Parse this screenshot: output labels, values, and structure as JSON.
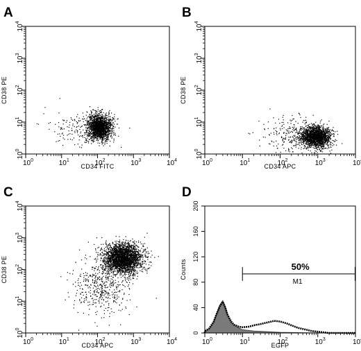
{
  "chart_data": [
    {
      "panel": "A",
      "type": "scatter",
      "xlabel": "CD34 FITC",
      "ylabel": "CD38 PE",
      "xscale": "log",
      "yscale": "log",
      "xlim": [
        1,
        10000
      ],
      "ylim": [
        1,
        10000
      ],
      "xticks": [
        "1",
        "10",
        "100",
        "1000",
        "10000"
      ],
      "yticks": [
        "1",
        "10",
        "100",
        "1000",
        "10000"
      ],
      "clusters": [
        {
          "center": [
            110,
            7
          ],
          "spread_decades": [
            0.17,
            0.2
          ],
          "weight": 1800
        },
        {
          "center": [
            30,
            6
          ],
          "spread_decades": [
            0.45,
            0.28
          ],
          "weight": 160
        }
      ]
    },
    {
      "panel": "B",
      "type": "scatter",
      "xlabel": "CD34 APC",
      "ylabel": "CD38 PE",
      "xscale": "log",
      "yscale": "log",
      "xlim": [
        1,
        10000
      ],
      "ylim": [
        1,
        10000
      ],
      "xticks": [
        "1",
        "10",
        "100",
        "1000",
        "10000"
      ],
      "yticks": [
        "1",
        "10",
        "100",
        "1000",
        "10000"
      ],
      "clusters": [
        {
          "center": [
            900,
            3.5
          ],
          "spread_decades": [
            0.2,
            0.16
          ],
          "weight": 1700
        },
        {
          "center": [
            250,
            4
          ],
          "spread_decades": [
            0.45,
            0.28
          ],
          "weight": 300
        }
      ]
    },
    {
      "panel": "C",
      "type": "scatter",
      "xlabel": "CD34 APC",
      "ylabel": "CD38 PE",
      "xscale": "log",
      "yscale": "log",
      "xlim": [
        1,
        10000
      ],
      "ylim": [
        1,
        10000
      ],
      "xticks": [
        "1",
        "10",
        "100",
        "1000",
        "10000"
      ],
      "yticks": [
        "1",
        "10",
        "100",
        "1000",
        "10000"
      ],
      "clusters": [
        {
          "center": [
            500,
            230
          ],
          "spread_decades": [
            0.26,
            0.24
          ],
          "weight": 2700
        },
        {
          "center": [
            130,
            30
          ],
          "spread_decades": [
            0.42,
            0.42
          ],
          "weight": 450
        }
      ]
    },
    {
      "panel": "D",
      "type": "area",
      "xlabel": "EGFP",
      "ylabel": "Counts",
      "xscale": "log",
      "xlim": [
        1,
        10000
      ],
      "ylim": [
        0,
        200
      ],
      "xticks": [
        "1",
        "10",
        "100",
        "1000",
        "10000"
      ],
      "yticks": [
        0,
        40,
        80,
        120,
        160,
        200
      ],
      "series": [
        {
          "fill": "filled",
          "x": [
            1,
            1.3,
            1.7,
            2,
            2.5,
            3,
            3.5,
            4,
            5,
            6,
            8,
            10,
            20,
            50,
            100,
            1000,
            10000
          ],
          "y": [
            2,
            6,
            16,
            28,
            44,
            51,
            42,
            28,
            16,
            12,
            8,
            5,
            3,
            2,
            1,
            0,
            0
          ]
        },
        {
          "fill": "outline",
          "x": [
            1,
            1.3,
            1.7,
            2,
            2.5,
            3,
            3.5,
            4,
            5,
            6,
            8,
            10,
            15,
            20,
            30,
            50,
            70,
            100,
            150,
            200,
            300,
            500,
            700,
            1000,
            2000,
            10000
          ],
          "y": [
            3,
            7,
            17,
            28,
            42,
            49,
            40,
            29,
            18,
            13,
            10,
            9,
            10,
            12,
            14,
            17,
            19,
            18,
            15,
            12,
            8,
            5,
            3,
            2,
            0,
            0
          ]
        }
      ],
      "gate": {
        "name": "M1",
        "percent": "50%",
        "range": [
          10,
          10000
        ],
        "y": 93
      }
    }
  ]
}
